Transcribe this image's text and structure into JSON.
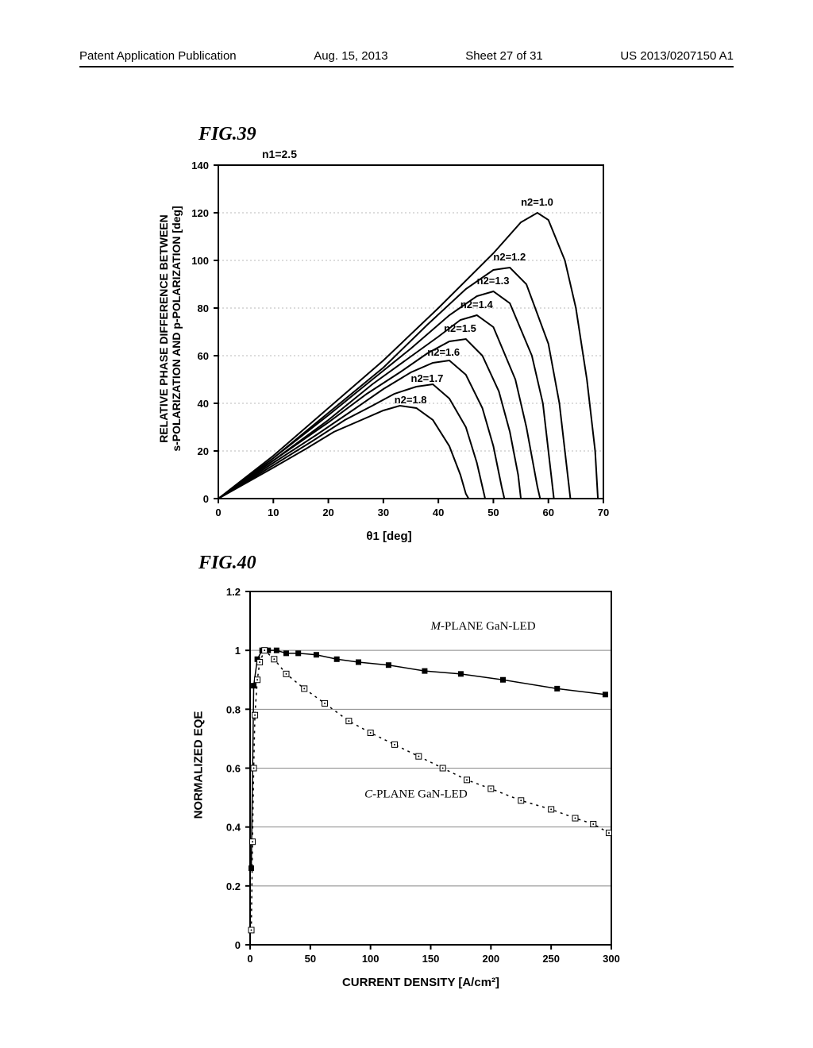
{
  "header": {
    "left": "Patent Application Publication",
    "date": "Aug. 15, 2013",
    "sheet": "Sheet 27 of 31",
    "pubno": "US 2013/0207150 A1"
  },
  "fig39": {
    "label": "FIG.39",
    "title_top": "n1=2.5",
    "xlabel": "θ1 [deg]",
    "ylabel_line1": "RELATIVE PHASE DIFFERENCE BETWEEN",
    "ylabel_line2": "s-POLARIZATION AND p-POLARIZATION [deg]",
    "xlim": [
      0,
      70
    ],
    "ylim": [
      0,
      140
    ],
    "xtick_step": 10,
    "ytick_step": 20,
    "axis_color": "#000000",
    "grid_color": "#b8b8b8",
    "background_color": "#ffffff",
    "line_width": 2,
    "label_fontsize": 12,
    "tick_fontsize": 13,
    "series": [
      {
        "label": "n2=1.0",
        "label_x": 55,
        "label_y": 123,
        "points": [
          [
            0,
            0
          ],
          [
            10,
            18
          ],
          [
            20,
            38
          ],
          [
            30,
            58
          ],
          [
            40,
            80
          ],
          [
            50,
            103
          ],
          [
            55,
            116
          ],
          [
            58,
            120
          ],
          [
            60,
            117
          ],
          [
            63,
            100
          ],
          [
            65,
            80
          ],
          [
            67,
            50
          ],
          [
            68.5,
            20
          ],
          [
            69,
            0
          ]
        ]
      },
      {
        "label": "n2=1.2",
        "label_x": 50,
        "label_y": 100,
        "points": [
          [
            0,
            0
          ],
          [
            10,
            17
          ],
          [
            20,
            36
          ],
          [
            30,
            55
          ],
          [
            38,
            73
          ],
          [
            45,
            88
          ],
          [
            50,
            96
          ],
          [
            53,
            97
          ],
          [
            56,
            90
          ],
          [
            60,
            65
          ],
          [
            62,
            40
          ],
          [
            63.5,
            10
          ],
          [
            64,
            0
          ]
        ]
      },
      {
        "label": "n2=1.3",
        "label_x": 47,
        "label_y": 90,
        "points": [
          [
            0,
            0
          ],
          [
            10,
            17
          ],
          [
            20,
            35
          ],
          [
            28,
            50
          ],
          [
            35,
            63
          ],
          [
            42,
            77
          ],
          [
            47,
            85
          ],
          [
            50,
            87
          ],
          [
            53,
            82
          ],
          [
            57,
            60
          ],
          [
            59,
            40
          ],
          [
            60.5,
            10
          ],
          [
            61,
            0
          ]
        ]
      },
      {
        "label": "n2=1.4",
        "label_x": 44,
        "label_y": 80,
        "points": [
          [
            0,
            0
          ],
          [
            10,
            16
          ],
          [
            20,
            33
          ],
          [
            28,
            48
          ],
          [
            34,
            58
          ],
          [
            40,
            68
          ],
          [
            44,
            75
          ],
          [
            47,
            77
          ],
          [
            50,
            72
          ],
          [
            54,
            50
          ],
          [
            56,
            30
          ],
          [
            58,
            5
          ],
          [
            58.5,
            0
          ]
        ]
      },
      {
        "label": "n2=1.5",
        "label_x": 41,
        "label_y": 70,
        "points": [
          [
            0,
            0
          ],
          [
            10,
            16
          ],
          [
            20,
            32
          ],
          [
            27,
            44
          ],
          [
            33,
            53
          ],
          [
            38,
            61
          ],
          [
            42,
            66
          ],
          [
            45,
            67
          ],
          [
            48,
            60
          ],
          [
            51,
            45
          ],
          [
            53,
            28
          ],
          [
            54.5,
            10
          ],
          [
            55,
            0
          ]
        ]
      },
      {
        "label": "n2=1.6",
        "label_x": 38,
        "label_y": 60,
        "points": [
          [
            0,
            0
          ],
          [
            10,
            15
          ],
          [
            18,
            27
          ],
          [
            25,
            38
          ],
          [
            30,
            46
          ],
          [
            35,
            53
          ],
          [
            39,
            57
          ],
          [
            42,
            58
          ],
          [
            45,
            52
          ],
          [
            48,
            38
          ],
          [
            50,
            22
          ],
          [
            51.5,
            5
          ],
          [
            52,
            0
          ]
        ]
      },
      {
        "label": "n2=1.7",
        "label_x": 35,
        "label_y": 49,
        "points": [
          [
            0,
            0
          ],
          [
            10,
            14
          ],
          [
            17,
            24
          ],
          [
            23,
            33
          ],
          [
            28,
            39
          ],
          [
            32,
            44
          ],
          [
            36,
            47
          ],
          [
            39,
            48
          ],
          [
            42,
            42
          ],
          [
            45,
            30
          ],
          [
            47,
            15
          ],
          [
            48,
            5
          ],
          [
            48.5,
            0
          ]
        ]
      },
      {
        "label": "n2=1.8",
        "label_x": 32,
        "label_y": 40,
        "points": [
          [
            0,
            0
          ],
          [
            10,
            13
          ],
          [
            16,
            21
          ],
          [
            21,
            28
          ],
          [
            26,
            33
          ],
          [
            30,
            37
          ],
          [
            33,
            39
          ],
          [
            36,
            38
          ],
          [
            39,
            33
          ],
          [
            42,
            22
          ],
          [
            44,
            10
          ],
          [
            45,
            2
          ],
          [
            45.5,
            0
          ]
        ]
      }
    ]
  },
  "fig40": {
    "label": "FIG.40",
    "xlabel": "CURRENT DENSITY [A/cm²]",
    "ylabel": "NORMALIZED EQE",
    "xlim": [
      0,
      300
    ],
    "ylim": [
      0,
      1.2
    ],
    "xtick_step": 50,
    "ytick_step": 0.2,
    "axis_color": "#000000",
    "grid_color": "#888888",
    "background_color": "#ffffff",
    "line_width": 1.5,
    "marker_size": 7,
    "tick_fontsize": 13,
    "series_m": {
      "label": "M-PLANE GaN-LED",
      "label_italic_first": "M",
      "label_rest": "-PLANE GaN-LED",
      "marker": "filled-square",
      "color": "#000000",
      "dash": "solid",
      "points": [
        [
          1,
          0.26
        ],
        [
          3,
          0.88
        ],
        [
          6,
          0.97
        ],
        [
          10,
          1.0
        ],
        [
          15,
          1.0
        ],
        [
          22,
          1.0
        ],
        [
          30,
          0.99
        ],
        [
          40,
          0.99
        ],
        [
          55,
          0.985
        ],
        [
          72,
          0.97
        ],
        [
          90,
          0.96
        ],
        [
          115,
          0.95
        ],
        [
          145,
          0.93
        ],
        [
          175,
          0.92
        ],
        [
          210,
          0.9
        ],
        [
          255,
          0.87
        ],
        [
          295,
          0.85
        ]
      ]
    },
    "series_c": {
      "label": "C-PLANE GaN-LED",
      "label_italic_first": "C",
      "label_rest": "-PLANE GaN-LED",
      "marker": "open-square-dot",
      "color": "#000000",
      "dash": "dotted",
      "points": [
        [
          1,
          0.05
        ],
        [
          2,
          0.35
        ],
        [
          3,
          0.6
        ],
        [
          4,
          0.78
        ],
        [
          6,
          0.9
        ],
        [
          8,
          0.96
        ],
        [
          12,
          1.0
        ],
        [
          20,
          0.97
        ],
        [
          30,
          0.92
        ],
        [
          45,
          0.87
        ],
        [
          62,
          0.82
        ],
        [
          82,
          0.76
        ],
        [
          100,
          0.72
        ],
        [
          120,
          0.68
        ],
        [
          140,
          0.64
        ],
        [
          160,
          0.6
        ],
        [
          180,
          0.56
        ],
        [
          200,
          0.53
        ],
        [
          225,
          0.49
        ],
        [
          250,
          0.46
        ],
        [
          270,
          0.43
        ],
        [
          285,
          0.41
        ],
        [
          298,
          0.38
        ]
      ]
    }
  }
}
